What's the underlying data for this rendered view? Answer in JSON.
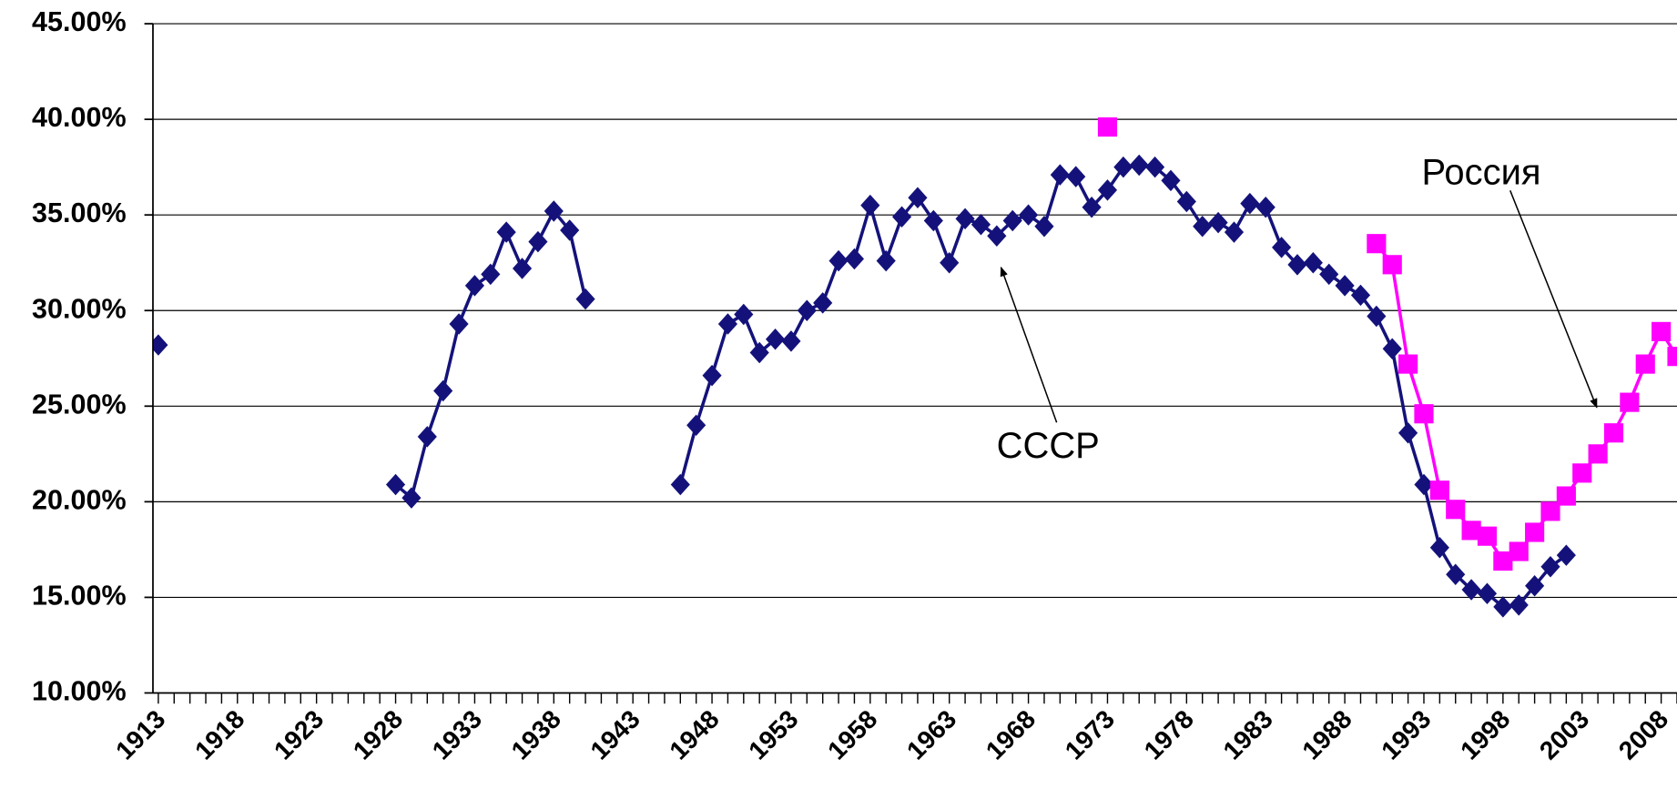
{
  "chart_data": {
    "type": "line",
    "x": [
      1913,
      1914,
      1915,
      1916,
      1917,
      1918,
      1919,
      1920,
      1921,
      1922,
      1923,
      1924,
      1925,
      1926,
      1927,
      1928,
      1929,
      1930,
      1931,
      1932,
      1933,
      1934,
      1935,
      1936,
      1937,
      1938,
      1939,
      1940,
      1941,
      1942,
      1943,
      1944,
      1945,
      1946,
      1947,
      1948,
      1949,
      1950,
      1951,
      1952,
      1953,
      1954,
      1955,
      1956,
      1957,
      1958,
      1959,
      1960,
      1961,
      1962,
      1963,
      1964,
      1965,
      1966,
      1967,
      1968,
      1969,
      1970,
      1971,
      1972,
      1973,
      1974,
      1975,
      1976,
      1977,
      1978,
      1979,
      1980,
      1981,
      1982,
      1983,
      1984,
      1985,
      1986,
      1987,
      1988,
      1989,
      1990,
      1991,
      1992,
      1993,
      1994,
      1995,
      1996,
      1997,
      1998,
      1999,
      2000,
      2001,
      2002,
      2003,
      2004,
      2005,
      2006,
      2007,
      2008,
      2009
    ],
    "series": [
      {
        "name": "СССР",
        "color": "#14127a",
        "marker": "diamond",
        "values": [
          28.2,
          null,
          null,
          null,
          null,
          null,
          null,
          null,
          null,
          null,
          null,
          null,
          null,
          null,
          null,
          20.9,
          20.2,
          23.4,
          25.8,
          29.3,
          31.3,
          31.9,
          34.1,
          32.2,
          33.6,
          35.2,
          34.2,
          30.6,
          null,
          null,
          null,
          null,
          null,
          20.9,
          24.0,
          26.6,
          29.3,
          29.8,
          27.8,
          28.5,
          28.4,
          30.0,
          30.4,
          32.6,
          32.7,
          35.5,
          32.6,
          34.9,
          35.9,
          34.7,
          32.5,
          34.8,
          34.5,
          33.9,
          34.7,
          35.0,
          34.4,
          37.1,
          37.0,
          35.4,
          36.3,
          37.5,
          37.6,
          37.5,
          36.8,
          35.7,
          34.4,
          34.6,
          34.1,
          35.6,
          35.4,
          33.3,
          32.4,
          32.5,
          31.9,
          31.3,
          30.8,
          29.7,
          28.0,
          23.6,
          20.9,
          17.6,
          16.2,
          15.4,
          15.2,
          14.5,
          14.6,
          15.6,
          16.6,
          17.2,
          null,
          null,
          null,
          null,
          null,
          null,
          null
        ]
      },
      {
        "name": "Россия",
        "color": "#ff00ff",
        "marker": "square",
        "values": [
          null,
          null,
          null,
          null,
          null,
          null,
          null,
          null,
          null,
          null,
          null,
          null,
          null,
          null,
          null,
          null,
          null,
          null,
          null,
          null,
          null,
          null,
          null,
          null,
          null,
          null,
          null,
          null,
          null,
          null,
          null,
          null,
          null,
          null,
          null,
          null,
          null,
          null,
          null,
          null,
          null,
          null,
          null,
          null,
          null,
          null,
          null,
          null,
          null,
          null,
          null,
          null,
          null,
          null,
          null,
          null,
          null,
          null,
          null,
          null,
          39.6,
          null,
          null,
          null,
          null,
          null,
          null,
          null,
          null,
          null,
          null,
          null,
          null,
          null,
          null,
          null,
          null,
          33.5,
          32.4,
          27.2,
          24.6,
          20.6,
          19.6,
          18.5,
          18.2,
          16.9,
          17.4,
          18.4,
          19.5,
          20.3,
          21.5,
          22.5,
          23.6,
          25.2,
          27.2,
          28.9,
          27.6
        ]
      }
    ],
    "annotations": [
      {
        "text": "СССР",
        "series": 0
      },
      {
        "text": "Россия",
        "series": 1
      }
    ],
    "xlim": [
      1912.66,
      2009.0
    ],
    "xticks": [
      1913,
      1918,
      1923,
      1928,
      1933,
      1938,
      1943,
      1948,
      1953,
      1958,
      1963,
      1968,
      1973,
      1978,
      1983,
      1988,
      1993,
      1998,
      2003,
      2008
    ],
    "ylim": [
      10,
      45
    ],
    "yticks": [
      {
        "value": 10,
        "label": "10.00%"
      },
      {
        "value": 15,
        "label": "15.00%"
      },
      {
        "value": 20,
        "label": "20.00%"
      },
      {
        "value": 25,
        "label": "25.00%"
      },
      {
        "value": 30,
        "label": "30.00%"
      },
      {
        "value": 35,
        "label": "35.00%"
      },
      {
        "value": 40,
        "label": "40.00%"
      },
      {
        "value": 45,
        "label": "45.00%"
      }
    ],
    "grid": true
  }
}
